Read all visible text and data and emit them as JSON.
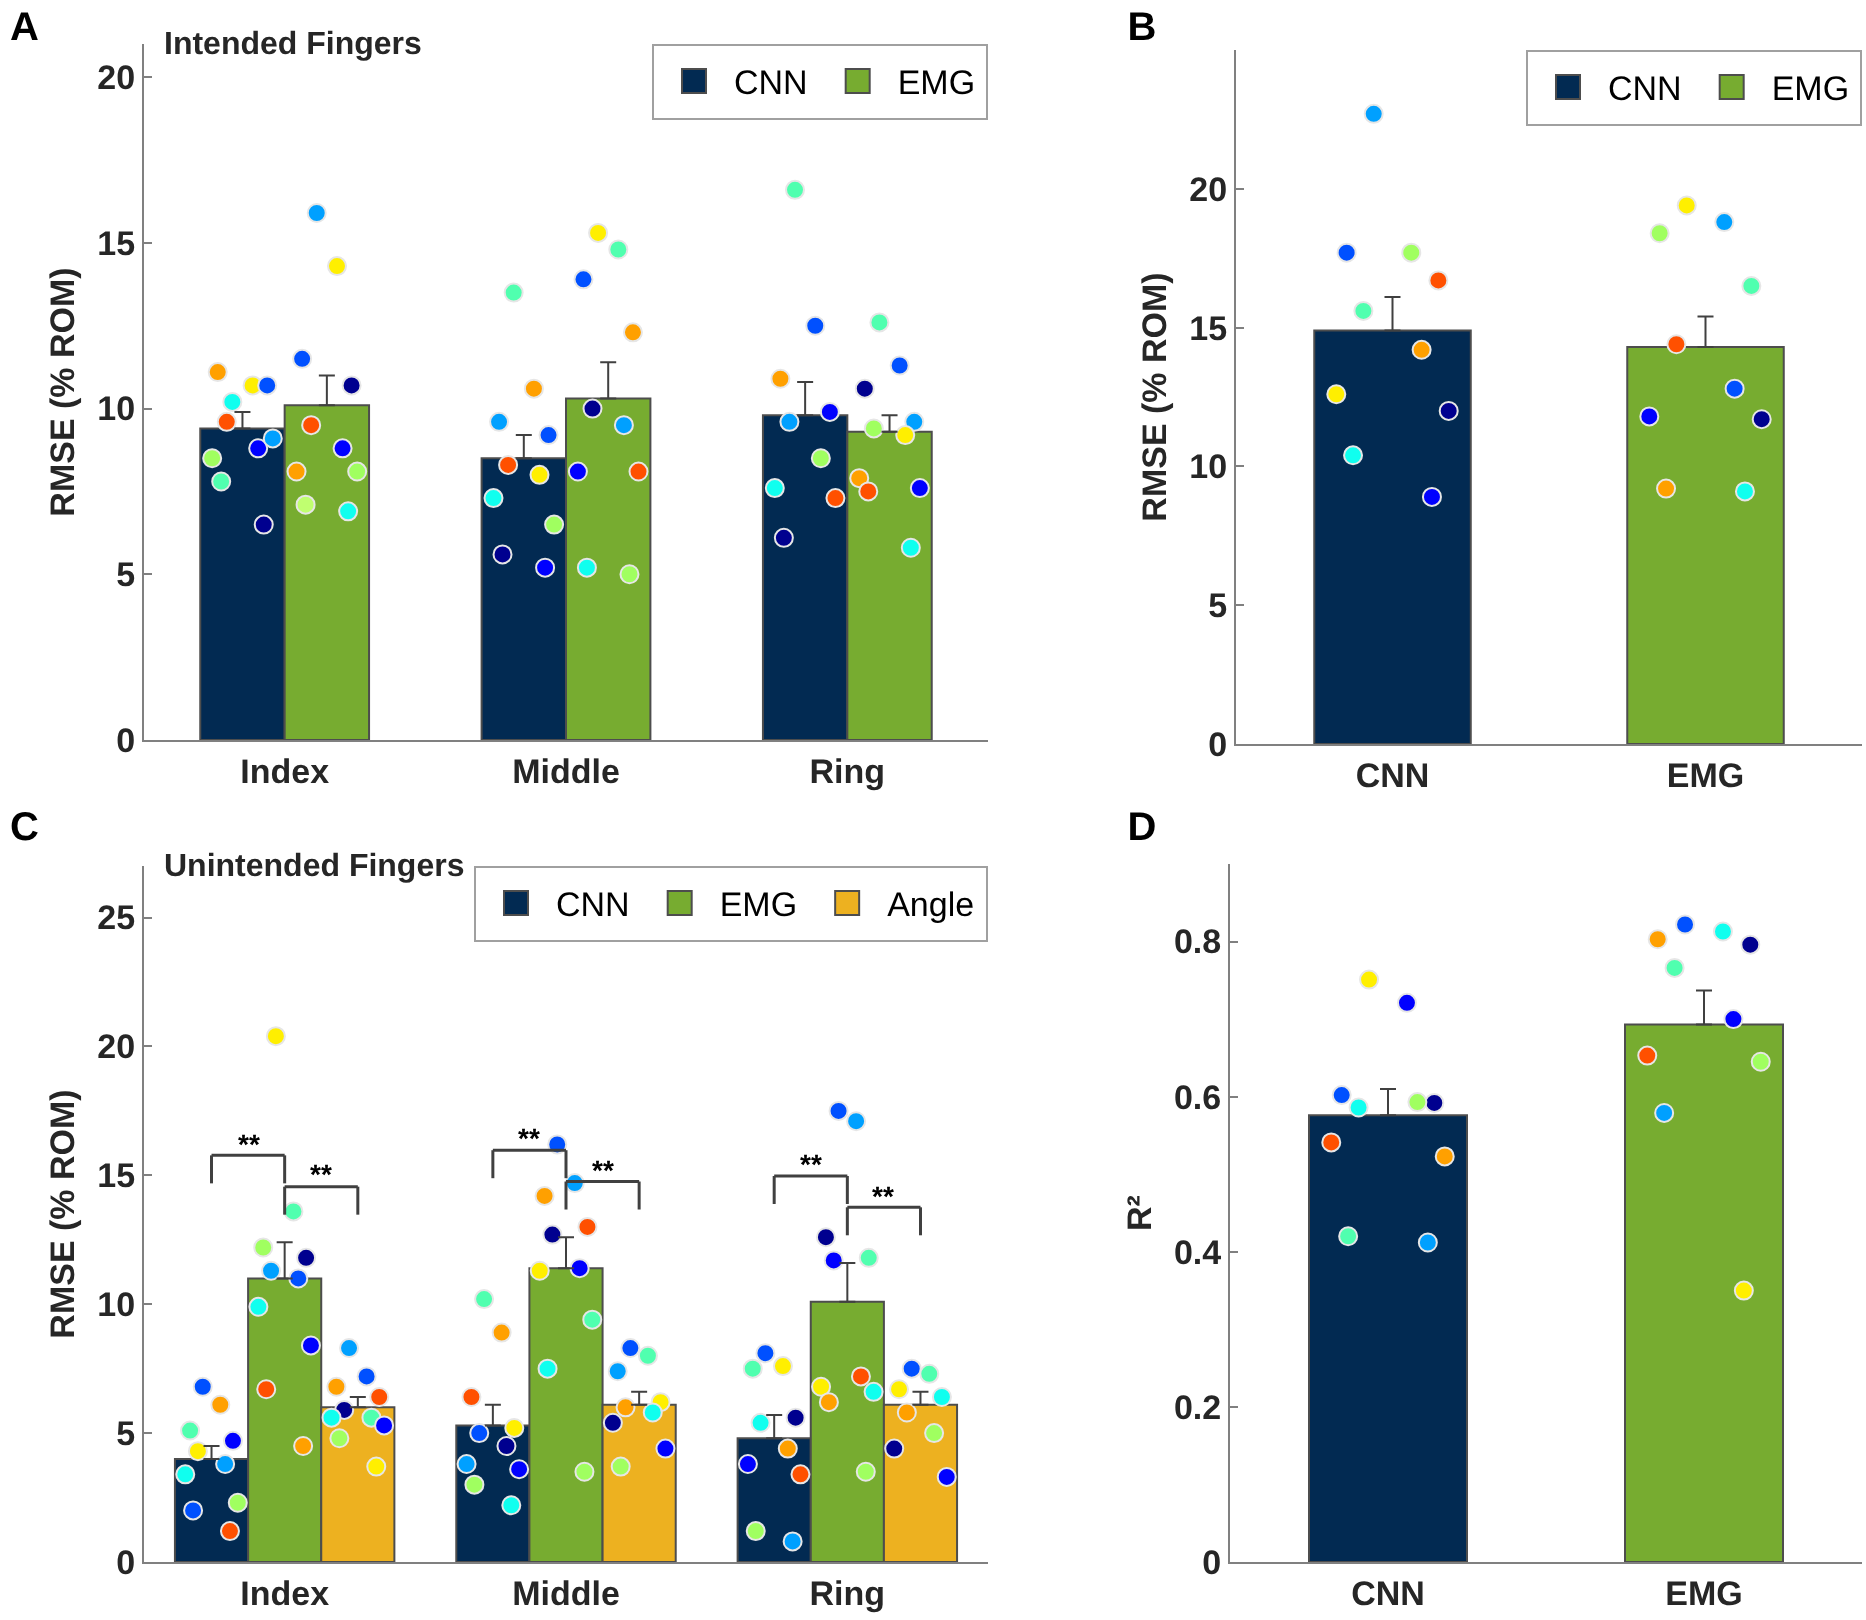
{
  "chart_data": [
    {
      "type": "bar",
      "title": "A",
      "subtitle": "Intended Fingers",
      "ylabel": "RMSE (% ROM)",
      "categories": [
        "Index",
        "Middle",
        "Ring"
      ],
      "ylim": [
        0,
        21
      ],
      "yticks": [
        0,
        5,
        10,
        15,
        20
      ],
      "legend": "top right",
      "grid": false,
      "marker": "circle",
      "series": [
        {
          "name": "CNN",
          "color": "#022a52",
          "values": [
            9.4,
            8.5,
            9.8
          ],
          "errors": [
            [
              9.4,
              9.9
            ],
            [
              8.5,
              9.2
            ],
            [
              9.8,
              10.8
            ]
          ]
        },
        {
          "name": "EMG",
          "color": "#77ac30",
          "values": [
            10.1,
            10.3,
            9.3
          ],
          "errors": [
            [
              10.1,
              11.0
            ],
            [
              10.3,
              11.4
            ],
            [
              9.3,
              9.8
            ]
          ]
        },
        {
          "type": "scatter",
          "x": [
            "Index",
            "Index",
            "Index",
            "Index",
            "Index",
            "Index",
            "Index",
            "Index",
            "Index",
            "Index",
            "Middle",
            "Middle",
            "Middle",
            "Middle",
            "Middle",
            "Middle",
            "Middle",
            "Middle",
            "Middle",
            "Middle",
            "Ring",
            "Ring",
            "Ring",
            "Ring",
            "Ring",
            "Ring",
            "Ring",
            "Ring",
            "Ring"
          ],
          "values": [
            10.2,
            10.7,
            11.1,
            10.7,
            9.6,
            8.8,
            8.5,
            9.1,
            7.8,
            6.5,
            13.5,
            10.6,
            9.6,
            9.2,
            8.3,
            8.0,
            7.3,
            6.5,
            5.6,
            5.2,
            16.6,
            12.5,
            10.9,
            9.9,
            9.6,
            8.5,
            7.6,
            7.3,
            6.1
          ],
          "colors": [
            "#10ffef",
            "#ffef00",
            "#ffa000",
            "#0050ff",
            "#ff5000",
            "#0000ff",
            "#a0ff60",
            "#00a0ff",
            "#50ffaf",
            "#00008f",
            "#50ffaf",
            "#ffa000",
            "#00a0ff",
            "#0050ff",
            "#ff5000",
            "#ffef00",
            "#10ffef",
            "#a0ff60",
            "#00008f",
            "#0000ff",
            "#50ffaf",
            "#0050ff",
            "#ffa000",
            "#0000ff",
            "#00a0ff",
            "#a0ff60",
            "#10ffef",
            "#ff5000",
            "#00008f"
          ]
        },
        {
          "type": "scatter",
          "x": [
            "Index",
            "Index",
            "Index",
            "Index",
            "Index",
            "Index",
            "Index",
            "Index",
            "Index",
            "Index",
            "Middle",
            "Middle",
            "Middle",
            "Middle",
            "Middle",
            "Middle",
            "Middle",
            "Middle",
            "Middle",
            "Middle",
            "Ring",
            "Ring",
            "Ring",
            "Ring",
            "Ring",
            "Ring",
            "Ring",
            "Ring",
            "Ring",
            "Ring"
          ],
          "values": [
            15.9,
            14.3,
            11.5,
            10.7,
            9.5,
            8.8,
            8.1,
            8.1,
            7.1,
            6.9,
            15.3,
            14.8,
            13.9,
            12.3,
            10.0,
            9.5,
            8.1,
            8.1,
            5.2,
            5.0,
            12.6,
            11.3,
            10.6,
            9.6,
            9.4,
            9.2,
            7.9,
            7.6,
            7.5,
            5.8
          ],
          "colors": [
            "#00a0ff",
            "#ffef00",
            "#0050ff",
            "#00008f",
            "#ff5000",
            "#0000ff",
            "#ffa000",
            "#a0ff60",
            "#c0ff70",
            "#10ffef",
            "#ffef00",
            "#50ffaf",
            "#0050ff",
            "#ffa000",
            "#00008f",
            "#00a0ff",
            "#0000ff",
            "#ff5000",
            "#10ffef",
            "#a0ff60",
            "#50ffaf",
            "#0050ff",
            "#00008f",
            "#00a0ff",
            "#a0ff60",
            "#ffef00",
            "#ffa000",
            "#0000ff",
            "#ff5000",
            "#10ffef"
          ]
        }
      ]
    },
    {
      "type": "bar",
      "title": "B",
      "ylabel": "RMSE (% ROM)",
      "categories": [
        "CNN",
        "EMG"
      ],
      "ylim": [
        0,
        25
      ],
      "yticks": [
        0,
        5,
        10,
        15,
        20
      ],
      "legend": "top right",
      "grid": false,
      "marker": "circle",
      "series": [
        {
          "name": "CNN",
          "color": "#022a52",
          "values": [
            14.9,
            null
          ],
          "errors": [
            [
              14.9,
              16.1
            ],
            null
          ]
        },
        {
          "name": "EMG",
          "color": "#77ac30",
          "values": [
            null,
            14.3
          ],
          "errors": [
            null,
            [
              14.3,
              15.4
            ]
          ]
        },
        {
          "type": "scatter",
          "x": [
            "CNN",
            "CNN",
            "CNN",
            "CNN",
            "CNN",
            "CNN",
            "CNN",
            "CNN",
            "CNN",
            "CNN"
          ],
          "values": [
            22.7,
            17.7,
            17.7,
            16.7,
            15.6,
            14.2,
            12.6,
            12.0,
            10.4,
            8.9
          ],
          "colors": [
            "#00a0ff",
            "#a0ff60",
            "#0050ff",
            "#ff5000",
            "#50ffaf",
            "#ffa000",
            "#ffef00",
            "#00008f",
            "#10ffef",
            "#0000ff"
          ]
        },
        {
          "type": "scatter",
          "x": [
            "EMG",
            "EMG",
            "EMG",
            "EMG",
            "EMG",
            "EMG",
            "EMG",
            "EMG",
            "EMG",
            "EMG"
          ],
          "values": [
            19.4,
            18.8,
            18.4,
            16.5,
            14.4,
            12.8,
            11.8,
            11.7,
            9.2,
            9.1
          ],
          "colors": [
            "#ffef00",
            "#00a0ff",
            "#a0ff60",
            "#50ffaf",
            "#ff5000",
            "#0050ff",
            "#0000ff",
            "#00008f",
            "#ffa000",
            "#10ffef"
          ]
        }
      ]
    },
    {
      "type": "bar",
      "title": "C",
      "subtitle": "Unintended Fingers",
      "ylabel": "RMSE (% ROM)",
      "categories": [
        "Index",
        "Middle",
        "Ring"
      ],
      "ylim": [
        0,
        27
      ],
      "yticks": [
        0,
        5,
        10,
        15,
        20,
        25
      ],
      "legend": "top right",
      "grid": false,
      "marker": "circle",
      "annotations": [
        "**",
        "**",
        "**",
        "**",
        "**",
        "**"
      ],
      "series": [
        {
          "name": "CNN",
          "color": "#022a52",
          "values": [
            4.0,
            5.3,
            4.8
          ],
          "errors": [
            [
              4.0,
              4.5
            ],
            [
              5.3,
              6.1
            ],
            [
              4.8,
              5.7
            ]
          ]
        },
        {
          "name": "EMG",
          "color": "#77ac30",
          "values": [
            11.0,
            11.4,
            10.1
          ],
          "errors": [
            [
              11.0,
              12.4
            ],
            [
              11.4,
              12.6
            ],
            [
              10.1,
              11.6
            ]
          ]
        },
        {
          "name": "Angle",
          "color": "#edb120",
          "values": [
            6.0,
            6.1,
            6.1
          ],
          "errors": [
            [
              6.0,
              6.4
            ],
            [
              6.1,
              6.6
            ],
            [
              6.1,
              6.6
            ]
          ]
        },
        {
          "type": "scatter",
          "x": [
            "Index",
            "Index",
            "Index",
            "Index",
            "Index",
            "Index",
            "Index",
            "Index",
            "Index",
            "Index",
            "Middle",
            "Middle",
            "Middle",
            "Middle",
            "Middle",
            "Middle",
            "Middle",
            "Middle",
            "Middle",
            "Middle",
            "Ring",
            "Ring",
            "Ring",
            "Ring",
            "Ring",
            "Ring",
            "Ring",
            "Ring",
            "Ring",
            "Ring"
          ],
          "values": [
            6.8,
            6.1,
            5.1,
            4.7,
            4.3,
            3.8,
            3.4,
            2.3,
            2.0,
            1.2,
            10.2,
            8.9,
            6.4,
            5.2,
            5.0,
            4.5,
            3.8,
            3.6,
            3.0,
            2.2,
            8.1,
            7.6,
            7.5,
            5.6,
            5.4,
            4.4,
            3.8,
            3.4,
            1.2,
            0.8
          ],
          "colors": [
            "#0050ff",
            "#ffa000",
            "#50ffaf",
            "#0000ff",
            "#ffef00",
            "#00a0ff",
            "#10ffef",
            "#a0ff60",
            "#0050ff",
            "#ff5000",
            "#50ffaf",
            "#ffa000",
            "#ff5000",
            "#ffef00",
            "#0050ff",
            "#00008f",
            "#00a0ff",
            "#0000ff",
            "#a0ff60",
            "#10ffef",
            "#0050ff",
            "#ffef00",
            "#50ffaf",
            "#00008f",
            "#10ffef",
            "#ffa000",
            "#0000ff",
            "#ff5000",
            "#a0ff60",
            "#00a0ff"
          ]
        },
        {
          "type": "scatter",
          "x": [
            "Index",
            "Index",
            "Index",
            "Index",
            "Index",
            "Index",
            "Index",
            "Index",
            "Index",
            "Index",
            "Middle",
            "Middle",
            "Middle",
            "Middle",
            "Middle",
            "Middle",
            "Middle",
            "Middle",
            "Middle",
            "Middle",
            "Ring",
            "Ring",
            "Ring",
            "Ring",
            "Ring",
            "Ring",
            "Ring",
            "Ring",
            "Ring",
            "Ring"
          ],
          "values": [
            20.4,
            13.6,
            12.2,
            11.8,
            11.3,
            11.0,
            9.9,
            8.4,
            6.7,
            4.5,
            16.2,
            14.7,
            14.2,
            13.0,
            12.7,
            11.4,
            11.3,
            9.4,
            7.5,
            3.5,
            17.5,
            17.1,
            12.6,
            11.8,
            11.7,
            7.2,
            6.8,
            6.6,
            6.2,
            3.5
          ],
          "colors": [
            "#ffef00",
            "#50ffaf",
            "#a0ff60",
            "#00008f",
            "#00a0ff",
            "#0050ff",
            "#10ffef",
            "#0000ff",
            "#ff5000",
            "#ffa000",
            "#0050ff",
            "#00a0ff",
            "#ffa000",
            "#ff5000",
            "#00008f",
            "#0000ff",
            "#ffef00",
            "#50ffaf",
            "#10ffef",
            "#a0ff60",
            "#0050ff",
            "#00a0ff",
            "#00008f",
            "#50ffaf",
            "#0000ff",
            "#ff5000",
            "#ffef00",
            "#10ffef",
            "#ffa000",
            "#a0ff60"
          ]
        },
        {
          "type": "scatter",
          "x": [
            "Index",
            "Index",
            "Index",
            "Index",
            "Index",
            "Index",
            "Index",
            "Index",
            "Index",
            "Index",
            "Middle",
            "Middle",
            "Middle",
            "Middle",
            "Middle",
            "Middle",
            "Middle",
            "Middle",
            "Middle",
            "Ring",
            "Ring",
            "Ring",
            "Ring",
            "Ring",
            "Ring",
            "Ring",
            "Ring"
          ],
          "values": [
            8.3,
            7.2,
            6.8,
            6.4,
            5.9,
            5.6,
            5.6,
            5.3,
            4.8,
            3.7,
            8.3,
            8.0,
            7.4,
            6.2,
            6.0,
            5.8,
            5.4,
            4.4,
            3.7,
            7.5,
            7.3,
            6.7,
            6.4,
            5.8,
            5.0,
            4.4,
            3.3
          ],
          "colors": [
            "#00a0ff",
            "#0050ff",
            "#ffa000",
            "#ff5000",
            "#00008f",
            "#50ffaf",
            "#10ffef",
            "#0000ff",
            "#a0ff60",
            "#ffef00",
            "#0050ff",
            "#50ffaf",
            "#00a0ff",
            "#ffef00",
            "#ffa000",
            "#10ffef",
            "#00008f",
            "#0000ff",
            "#a0ff60",
            "#0050ff",
            "#50ffaf",
            "#ffef00",
            "#10ffef",
            "#ffa000",
            "#a0ff60",
            "#00008f",
            "#0000ff"
          ]
        }
      ]
    },
    {
      "type": "bar",
      "title": "D",
      "ylabel": "R²",
      "categories": [
        "CNN",
        "EMG"
      ],
      "ylim": [
        0,
        0.9
      ],
      "yticks": [
        0,
        0.2,
        0.4,
        0.6,
        0.8
      ],
      "grid": false,
      "marker": "circle",
      "series": [
        {
          "colors": [
            "#022a52",
            "#77ac30"
          ],
          "values": [
            0.576,
            0.693
          ],
          "errors": [
            [
              0.576,
              0.61
            ],
            [
              0.693,
              0.737
            ]
          ]
        },
        {
          "type": "scatter",
          "x": [
            "CNN",
            "CNN",
            "CNN",
            "CNN",
            "CNN",
            "CNN",
            "CNN",
            "CNN",
            "CNN",
            "CNN"
          ],
          "values": [
            0.751,
            0.721,
            0.602,
            0.592,
            0.586,
            0.593,
            0.541,
            0.523,
            0.42,
            0.412
          ],
          "colors": [
            "#ffef00",
            "#0000ff",
            "#0050ff",
            "#00008f",
            "#10ffef",
            "#a0ff60",
            "#ff5000",
            "#ffa000",
            "#50ffaf",
            "#00a0ff"
          ]
        },
        {
          "type": "scatter",
          "x": [
            "EMG",
            "EMG",
            "EMG",
            "EMG",
            "EMG",
            "EMG",
            "EMG",
            "EMG",
            "EMG",
            "EMG"
          ],
          "values": [
            0.822,
            0.813,
            0.803,
            0.796,
            0.766,
            0.7,
            0.653,
            0.645,
            0.579,
            0.35
          ],
          "colors": [
            "#0050ff",
            "#10ffef",
            "#ffa000",
            "#00008f",
            "#50ffaf",
            "#0000ff",
            "#ff5000",
            "#a0ff60",
            "#00a0ff",
            "#ffef00"
          ]
        }
      ]
    }
  ]
}
